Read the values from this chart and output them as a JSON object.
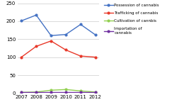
{
  "years": [
    2007,
    2008,
    2009,
    2010,
    2011,
    2012
  ],
  "possession": [
    201,
    217,
    160,
    163,
    191,
    162
  ],
  "trafficking": [
    100,
    130,
    145,
    120,
    103,
    100
  ],
  "cultivation": [
    2,
    3,
    8,
    10,
    6,
    3
  ],
  "importation": [
    2,
    2,
    2,
    2,
    2,
    2
  ],
  "colors": {
    "possession": "#4472C4",
    "trafficking": "#E8392A",
    "cultivation": "#92D050",
    "importation": "#7030A0"
  },
  "ylim": [
    0,
    250
  ],
  "yticks": [
    0,
    50,
    100,
    150,
    200,
    250
  ],
  "legend_labels": [
    "Possession of cannabis",
    "Trafficking of cannabis",
    "Cultivation of cannbis",
    "Importation of\ncannabis"
  ],
  "background_color": "#ffffff"
}
